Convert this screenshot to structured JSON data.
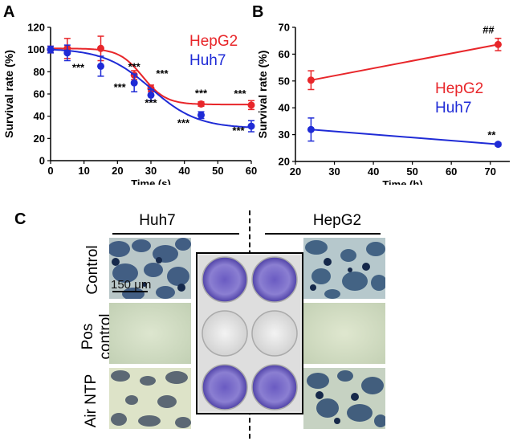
{
  "panels": {
    "A": "A",
    "B": "B",
    "C": "C"
  },
  "chart_data": [
    {
      "panel": "A",
      "type": "line",
      "xlabel": "Time (s)",
      "ylabel": "Survival rate (%)",
      "xlim": [
        0,
        60
      ],
      "ylim": [
        0,
        120
      ],
      "xticks": [
        "0",
        "10",
        "20",
        "30",
        "40",
        "50",
        "60"
      ],
      "yticks": [
        "0",
        "20",
        "40",
        "60",
        "80",
        "100",
        "120"
      ],
      "legend_position": "top-right",
      "series": [
        {
          "name": "HepG2",
          "color": "#e8262a",
          "x": [
            0,
            5,
            15,
            25,
            30,
            45,
            60
          ],
          "values": [
            100,
            101,
            101,
            77,
            65,
            51,
            50
          ],
          "errors": [
            3,
            9,
            11,
            4,
            3,
            2,
            4
          ],
          "annotations": [
            "",
            "",
            "",
            "***",
            "***",
            "***",
            "***"
          ]
        },
        {
          "name": "Huh7",
          "color": "#1f2bd6",
          "x": [
            0,
            5,
            15,
            25,
            30,
            45,
            60
          ],
          "values": [
            100,
            97,
            85,
            70,
            59,
            41,
            31
          ],
          "errors": [
            3,
            7,
            9,
            8,
            5,
            3,
            5
          ],
          "annotations": [
            "",
            "",
            "***",
            "***",
            "***",
            "***",
            "***"
          ]
        }
      ]
    },
    {
      "panel": "B",
      "type": "line",
      "xlabel": "Time (h)",
      "ylabel": "Survival rate (%)",
      "xlim": [
        20,
        75
      ],
      "ylim": [
        20,
        70
      ],
      "xticks": [
        "20",
        "30",
        "40",
        "50",
        "60",
        "70"
      ],
      "yticks": [
        "20",
        "30",
        "40",
        "50",
        "60",
        "70"
      ],
      "legend_position": "center-right",
      "series": [
        {
          "name": "HepG2",
          "color": "#e8262a",
          "x": [
            24,
            72
          ],
          "values": [
            50.3,
            63.6
          ],
          "errors": [
            3.5,
            2.3
          ],
          "annotations": [
            "",
            "##"
          ]
        },
        {
          "name": "Huh7",
          "color": "#1f2bd6",
          "x": [
            24,
            72
          ],
          "values": [
            31.9,
            26.4
          ],
          "errors": [
            4.3,
            0.6
          ],
          "annotations": [
            "",
            "**"
          ]
        }
      ]
    }
  ],
  "panel_c": {
    "col_left": "Huh7",
    "col_right": "HepG2",
    "rows": [
      "Control",
      "Pos control",
      "Air NTP"
    ],
    "pos_row_line1": "Pos",
    "pos_row_line2": "control",
    "scale_bar": "150 μm"
  }
}
